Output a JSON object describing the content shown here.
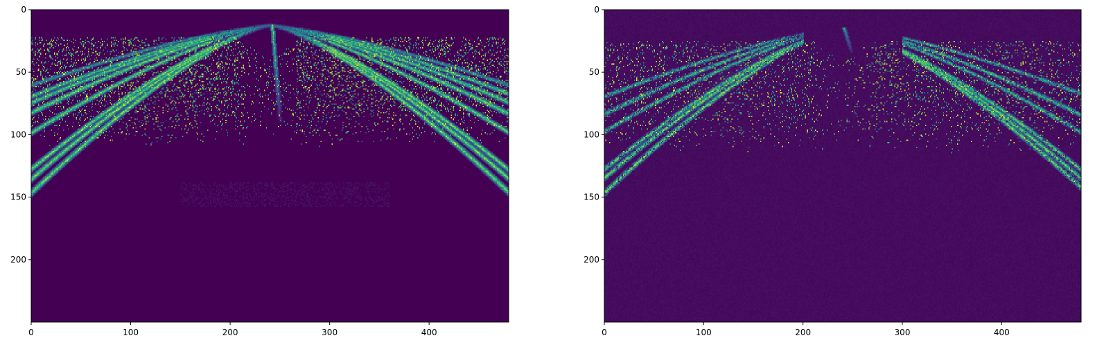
{
  "chart_data": [
    {
      "type": "heatmap",
      "colormap": "viridis",
      "title": "",
      "xlabel": "",
      "ylabel": "",
      "xlim": [
        0,
        480
      ],
      "ylim": [
        250,
        0
      ],
      "x_ticks": [
        0,
        100,
        200,
        300,
        400
      ],
      "y_ticks": [
        0,
        50,
        100,
        150,
        200
      ],
      "apex_x": 240,
      "apex_y": 12,
      "noise_band_rows": [
        22,
        70
      ],
      "bands": [
        {
          "left_end_y": 146,
          "right_end_y": 146,
          "intensity": 1.0,
          "width": 2.2
        },
        {
          "left_end_y": 135,
          "right_end_y": 135,
          "intensity": 1.0,
          "width": 2.0
        },
        {
          "left_end_y": 127,
          "right_end_y": 128,
          "intensity": 1.0,
          "width": 1.8
        },
        {
          "left_end_y": 98,
          "right_end_y": 98,
          "intensity": 0.95,
          "width": 1.5
        },
        {
          "left_end_y": 82,
          "right_end_y": 83,
          "intensity": 0.95,
          "width": 1.5
        },
        {
          "left_end_y": 74,
          "right_end_y": 74,
          "intensity": 0.9,
          "width": 1.3
        },
        {
          "left_end_y": 69,
          "right_end_y": 67,
          "intensity": 0.85,
          "width": 1.2
        },
        {
          "left_end_y": 60,
          "right_end_y": 60,
          "intensity": 0.6,
          "width": 1.0
        }
      ],
      "center_streak": {
        "x": 242,
        "y_start": 12,
        "y_end": 90,
        "intensity": 1.0
      }
    },
    {
      "type": "heatmap",
      "colormap": "viridis",
      "title": "",
      "xlabel": "",
      "ylabel": "",
      "xlim": [
        0,
        480
      ],
      "ylim": [
        250,
        0
      ],
      "x_ticks": [
        0,
        100,
        200,
        300,
        400
      ],
      "y_ticks": [
        0,
        50,
        100,
        150,
        200
      ],
      "apex_x": 240,
      "apex_y": 14,
      "noise_band_rows": [
        25,
        75
      ],
      "left_bands_visible_to_x": 200,
      "right_bands_visible_from_x": 300,
      "bands": [
        {
          "left_end_y": 146,
          "right_end_y": 142,
          "intensity": 1.0,
          "width": 2.0
        },
        {
          "left_end_y": 134,
          "right_end_y": 135,
          "intensity": 1.0,
          "width": 1.8
        },
        {
          "left_end_y": 127,
          "right_end_y": 128,
          "intensity": 0.95,
          "width": 1.6
        },
        {
          "left_end_y": 97,
          "right_end_y": 98,
          "intensity": 0.85,
          "width": 1.3
        },
        {
          "left_end_y": 83,
          "right_end_y": 84,
          "intensity": 0.85,
          "width": 1.3
        },
        {
          "left_end_y": 69,
          "right_end_y": 67,
          "intensity": 0.75,
          "width": 1.1
        }
      ],
      "center_streak": {
        "x": 241,
        "y_start": 14,
        "y_end": 35,
        "intensity": 0.7
      }
    }
  ]
}
